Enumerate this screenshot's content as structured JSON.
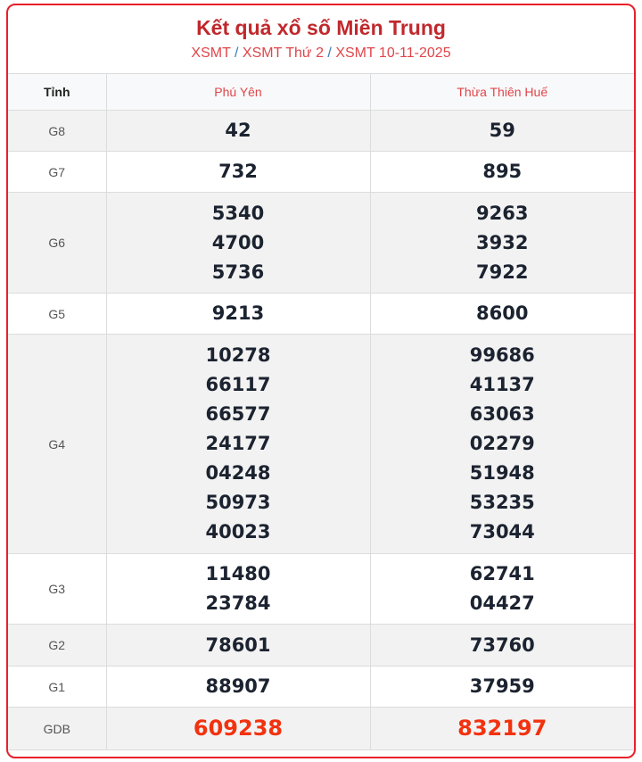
{
  "header": {
    "title": "Kết quả xổ số Miền Trung",
    "breadcrumb": [
      "XSMT",
      "XSMT Thứ 2",
      "XSMT 10-11-2025"
    ],
    "separator": "/"
  },
  "table": {
    "col_label": "Tỉnh",
    "provinces": [
      "Phú Yên",
      "Thừa Thiên Huế"
    ],
    "rows": [
      {
        "prize": "G8",
        "values": [
          [
            "42"
          ],
          [
            "59"
          ]
        ]
      },
      {
        "prize": "G7",
        "values": [
          [
            "732"
          ],
          [
            "895"
          ]
        ]
      },
      {
        "prize": "G6",
        "values": [
          [
            "5340",
            "4700",
            "5736"
          ],
          [
            "9263",
            "3932",
            "7922"
          ]
        ]
      },
      {
        "prize": "G5",
        "values": [
          [
            "9213"
          ],
          [
            "8600"
          ]
        ]
      },
      {
        "prize": "G4",
        "values": [
          [
            "10278",
            "66117",
            "66577",
            "24177",
            "04248",
            "50973",
            "40023"
          ],
          [
            "99686",
            "41137",
            "63063",
            "02279",
            "51948",
            "53235",
            "73044"
          ]
        ]
      },
      {
        "prize": "G3",
        "values": [
          [
            "11480",
            "23784"
          ],
          [
            "62741",
            "04427"
          ]
        ]
      },
      {
        "prize": "G2",
        "values": [
          [
            "78601"
          ],
          [
            "73760"
          ]
        ]
      },
      {
        "prize": "G1",
        "values": [
          [
            "88907"
          ],
          [
            "37959"
          ]
        ]
      },
      {
        "prize": "GDB",
        "values": [
          [
            "609238"
          ],
          [
            "832197"
          ]
        ]
      }
    ]
  },
  "colors": {
    "accent": "#c0282c",
    "border": "#e8202a",
    "special": "#f2320f"
  }
}
